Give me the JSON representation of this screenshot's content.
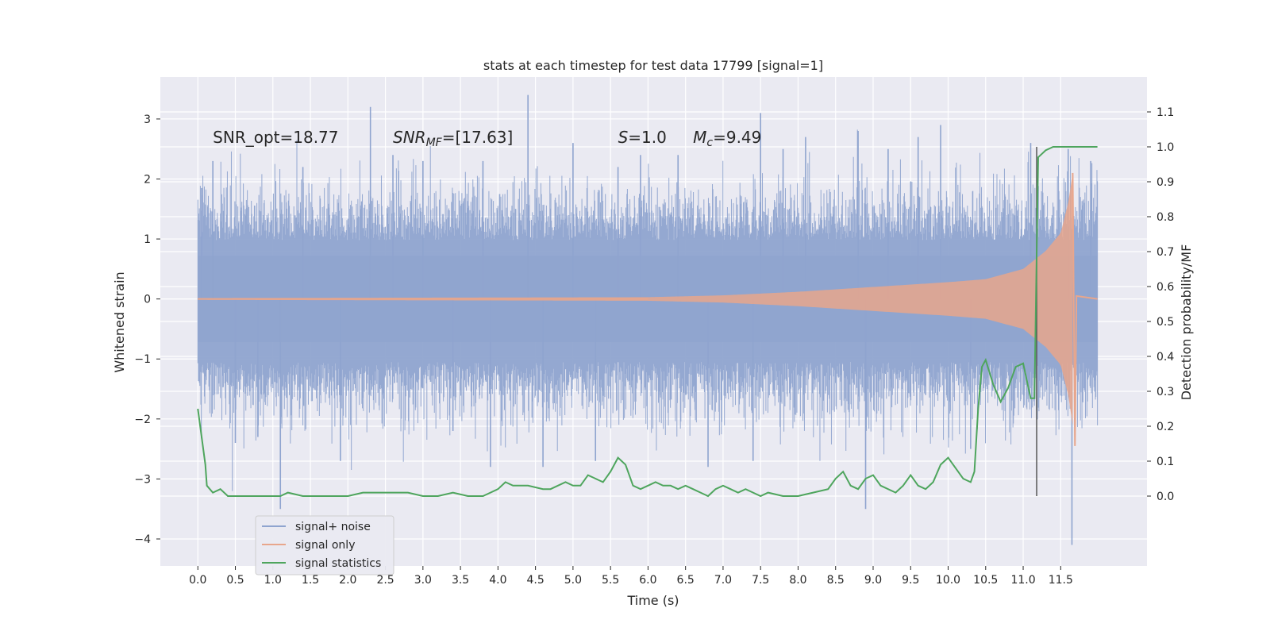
{
  "chart_data": {
    "type": "line",
    "title": "stats at each timestep for test data 17799 [signal=1]",
    "xlabel": "Time (s)",
    "ylabel": "Whitened strain",
    "y2label": "Detection probability/MF",
    "xlim": [
      -0.5,
      12.65
    ],
    "ylim": [
      -4.45,
      3.7
    ],
    "y2lim": [
      -0.2,
      1.2
    ],
    "x_ticks": [
      0.0,
      0.5,
      1.0,
      1.5,
      2.0,
      2.5,
      3.0,
      3.5,
      4.0,
      4.5,
      5.0,
      5.5,
      6.0,
      6.5,
      7.0,
      7.5,
      8.0,
      8.5,
      9.0,
      9.5,
      10.0,
      10.5,
      11.0,
      11.5
    ],
    "x_tick_labels": [
      "0.0",
      "0.5",
      "1.0",
      "1.5",
      "2.0",
      "2.5",
      "3.0",
      "3.5",
      "4.0",
      "4.5",
      "5.0",
      "5.5",
      "6.0",
      "6.5",
      "7.0",
      "7.5",
      "8.0",
      "8.5",
      "9.0",
      "9.5",
      "10.0",
      "10.5",
      "11.0",
      "11.5"
    ],
    "y_ticks": [
      -4,
      -3,
      -2,
      -1,
      0,
      1,
      2,
      3
    ],
    "y_tick_labels": [
      "−4",
      "−3",
      "−2",
      "−1",
      "0",
      "1",
      "2",
      "3"
    ],
    "y2_ticks": [
      0.0,
      0.1,
      0.2,
      0.3,
      0.4,
      0.5,
      0.6,
      0.7,
      0.8,
      0.9,
      1.0,
      1.1
    ],
    "y2_tick_labels": [
      "0.0",
      "0.1",
      "0.2",
      "0.3",
      "0.4",
      "0.5",
      "0.6",
      "0.7",
      "0.8",
      "0.9",
      "1.0",
      "1.1"
    ],
    "grid": true,
    "legend_position": "lower-left",
    "annotations": [
      {
        "text": "SNR_opt=18.77",
        "x": 0.2,
        "y": 2.6
      },
      {
        "text": "SNR_MF=[17.63]",
        "x": 2.6,
        "y": 2.6
      },
      {
        "text": "S=1.0",
        "x": 5.6,
        "y": 2.6
      },
      {
        "text": "M_c=9.49",
        "x": 6.6,
        "y": 2.6
      }
    ],
    "vline": {
      "x": 11.18,
      "y2_from": 0.0,
      "y2_to": 1.0,
      "color": "#555555"
    },
    "series": [
      {
        "name": "signal+ noise",
        "axis": "left",
        "color": "#8fa4cf",
        "time_range": [
          0.0,
          11.99
        ],
        "typical_envelope": [
          -1.5,
          1.4
        ],
        "spikes": [
          [
            0.05,
            1.85
          ],
          [
            0.2,
            2.3
          ],
          [
            0.5,
            -2.4
          ],
          [
            0.8,
            -2.3
          ],
          [
            1.1,
            -3.5
          ],
          [
            1.4,
            2.2
          ],
          [
            1.9,
            -2.7
          ],
          [
            2.3,
            3.2
          ],
          [
            2.6,
            2.4
          ],
          [
            3.0,
            2.3
          ],
          [
            3.4,
            -2.2
          ],
          [
            3.8,
            2.3
          ],
          [
            3.9,
            -2.8
          ],
          [
            4.4,
            3.4
          ],
          [
            4.6,
            -2.8
          ],
          [
            5.0,
            2.6
          ],
          [
            5.3,
            -2.7
          ],
          [
            5.6,
            2.2
          ],
          [
            5.9,
            2.4
          ],
          [
            6.4,
            2.4
          ],
          [
            6.8,
            -2.8
          ],
          [
            7.4,
            -2.7
          ],
          [
            7.5,
            3.1
          ],
          [
            7.8,
            2.5
          ],
          [
            8.1,
            2.7
          ],
          [
            8.8,
            2.8
          ],
          [
            8.9,
            -3.5
          ],
          [
            9.2,
            2.5
          ],
          [
            9.6,
            2.7
          ],
          [
            9.9,
            2.9
          ],
          [
            10.3,
            -2.5
          ],
          [
            11.1,
            2.6
          ],
          [
            11.6,
            2.5
          ],
          [
            11.65,
            -4.1
          ],
          [
            11.9,
            2.3
          ]
        ]
      },
      {
        "name": "signal only",
        "axis": "left",
        "color": "#e8a68c",
        "time_range": [
          0.0,
          11.99
        ],
        "amplitude_envelope": [
          [
            0.0,
            0.015
          ],
          [
            6.0,
            0.03
          ],
          [
            7.0,
            0.06
          ],
          [
            8.0,
            0.12
          ],
          [
            9.0,
            0.2
          ],
          [
            10.0,
            0.28
          ],
          [
            10.5,
            0.33
          ],
          [
            11.0,
            0.5
          ],
          [
            11.3,
            0.8
          ],
          [
            11.5,
            1.1
          ],
          [
            11.6,
            1.6
          ],
          [
            11.66,
            2.1
          ],
          [
            11.69,
            -2.45
          ],
          [
            11.71,
            0.05
          ],
          [
            11.99,
            0.0
          ]
        ]
      },
      {
        "name": "signal statistics",
        "axis": "right",
        "color": "#4ea55d",
        "x": [
          0.0,
          0.1,
          0.12,
          0.2,
          0.3,
          0.4,
          0.5,
          0.6,
          0.8,
          1.0,
          1.1,
          1.2,
          1.4,
          1.6,
          1.8,
          2.0,
          2.2,
          2.4,
          2.6,
          2.8,
          3.0,
          3.2,
          3.4,
          3.6,
          3.8,
          3.9,
          4.0,
          4.1,
          4.2,
          4.4,
          4.6,
          4.7,
          4.9,
          5.0,
          5.1,
          5.2,
          5.3,
          5.4,
          5.5,
          5.6,
          5.7,
          5.8,
          5.9,
          6.0,
          6.1,
          6.2,
          6.3,
          6.4,
          6.5,
          6.6,
          6.7,
          6.8,
          6.9,
          7.0,
          7.1,
          7.2,
          7.3,
          7.4,
          7.5,
          7.6,
          7.8,
          8.0,
          8.2,
          8.4,
          8.5,
          8.6,
          8.7,
          8.8,
          8.9,
          9.0,
          9.1,
          9.3,
          9.4,
          9.5,
          9.6,
          9.7,
          9.8,
          9.9,
          10.0,
          10.1,
          10.2,
          10.3,
          10.35,
          10.4,
          10.45,
          10.5,
          10.6,
          10.7,
          10.8,
          10.9,
          11.0,
          11.1,
          11.15,
          11.2,
          11.25,
          11.3,
          11.4,
          11.5,
          11.6,
          11.7,
          11.8,
          11.9,
          11.99
        ],
        "values": [
          0.25,
          0.09,
          0.03,
          0.01,
          0.02,
          0.0,
          0.0,
          0.0,
          0.0,
          0.0,
          0.0,
          0.01,
          0.0,
          0.0,
          0.0,
          0.0,
          0.01,
          0.01,
          0.01,
          0.01,
          0.0,
          0.0,
          0.01,
          0.0,
          0.0,
          0.01,
          0.02,
          0.04,
          0.03,
          0.03,
          0.02,
          0.02,
          0.04,
          0.03,
          0.03,
          0.06,
          0.05,
          0.04,
          0.07,
          0.11,
          0.09,
          0.03,
          0.02,
          0.03,
          0.04,
          0.03,
          0.03,
          0.02,
          0.03,
          0.02,
          0.01,
          0.0,
          0.02,
          0.03,
          0.02,
          0.01,
          0.02,
          0.01,
          0.0,
          0.01,
          0.0,
          0.0,
          0.01,
          0.02,
          0.05,
          0.07,
          0.03,
          0.02,
          0.05,
          0.06,
          0.03,
          0.01,
          0.03,
          0.06,
          0.03,
          0.02,
          0.04,
          0.09,
          0.11,
          0.08,
          0.05,
          0.04,
          0.07,
          0.25,
          0.37,
          0.39,
          0.32,
          0.27,
          0.31,
          0.37,
          0.38,
          0.28,
          0.28,
          0.97,
          0.98,
          0.99,
          1.0,
          1.0,
          1.0,
          1.0,
          1.0,
          1.0,
          1.0
        ]
      }
    ]
  }
}
